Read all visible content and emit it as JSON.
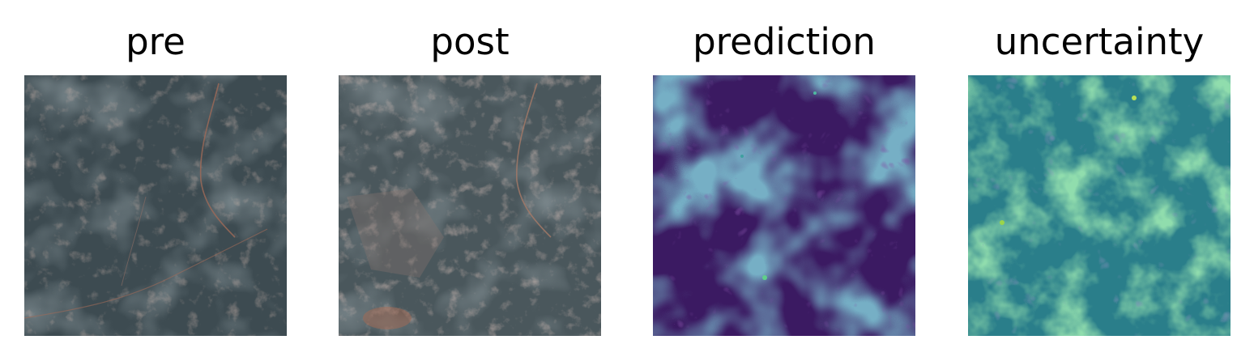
{
  "panels": [
    {
      "title": "pre",
      "kind": "satellite-rgb"
    },
    {
      "title": "post",
      "kind": "satellite-rgb"
    },
    {
      "title": "prediction",
      "kind": "heatmap",
      "colormap": "viridis"
    },
    {
      "title": "uncertainty",
      "kind": "heatmap",
      "colormap": "viridis"
    }
  ],
  "colors": {
    "satellite_base": "#3c4a50",
    "satellite_urban": "#9c7a70",
    "prediction_low": "#3b1860",
    "prediction_high": "#2f6d8e",
    "uncertainty_low": "#2c7d8a",
    "uncertainty_high": "#3fb86a"
  }
}
